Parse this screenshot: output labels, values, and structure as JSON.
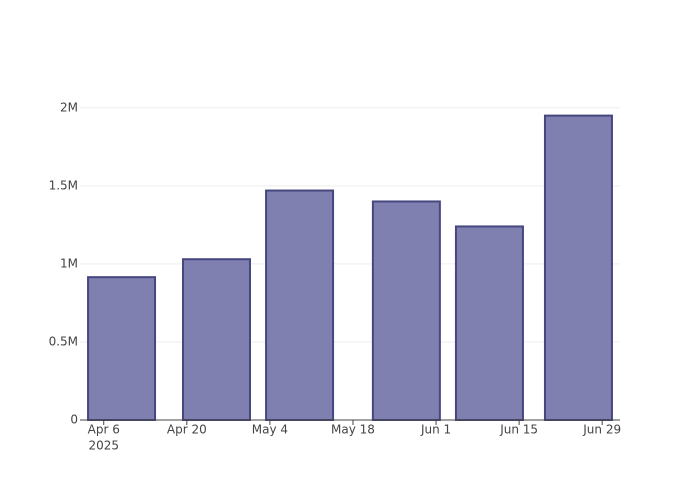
{
  "chart_data": {
    "type": "bar",
    "x": [
      "2025-04-09",
      "2025-04-25",
      "2025-05-09",
      "2025-05-27",
      "2025-06-10",
      "2025-06-25"
    ],
    "values": [
      915000,
      1030000,
      1470000,
      1400000,
      1240000,
      1950000
    ],
    "color": "#7f7fb0",
    "edge_color": "#474780",
    "xlim": [
      "2025-04-02",
      "2025-07-02"
    ],
    "xticks": [
      {
        "value": "2025-04-06",
        "label": "Apr 6"
      },
      {
        "value": "2025-04-20",
        "label": "Apr 20"
      },
      {
        "value": "2025-05-04",
        "label": "May 4"
      },
      {
        "value": "2025-05-18",
        "label": "May 18"
      },
      {
        "value": "2025-06-01",
        "label": "Jun 1"
      },
      {
        "value": "2025-06-15",
        "label": "Jun 15"
      },
      {
        "value": "2025-06-29",
        "label": "Jun 29"
      }
    ],
    "x_year_label": "2025",
    "ylim": [
      0,
      2050000
    ],
    "yticks": [
      0,
      {
        "value": 500000,
        "label": "0.5M"
      },
      {
        "value": 1000000,
        "label": "1M"
      },
      {
        "value": 1500000,
        "label": "1.5M"
      },
      {
        "value": 2000000,
        "label": "2M"
      }
    ],
    "grid": true
  }
}
